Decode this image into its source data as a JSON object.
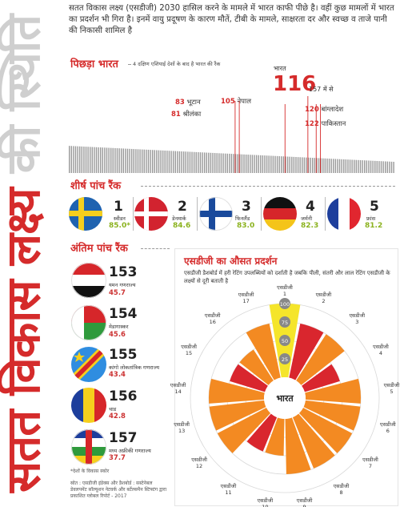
{
  "vertical_title": {
    "part_red": "सतत विकास लक्ष्य",
    "part_grey": "की स्थिति"
  },
  "intro": "सतत विकास लक्ष्य (एसडीजी) 2030 हासिल करने के मामले में भारत काफी पीछे है। वहीं कुछ मामलों में भारत का प्रदर्शन भी गिरा है। इनमें वायु प्रदूषण के कारण मौतें, टीबी के मामले, साक्षरता दर और स्वच्छ व ताजे पानी की निकासी शामिल है",
  "ranking": {
    "title": "पिछड़ा भारत",
    "note": "4 दक्षिण एशियाई देशों के बाद है भारत की रैंक",
    "india": {
      "label": "भारत",
      "rank": "116",
      "of": "157 में से"
    },
    "neighbours": [
      {
        "rank": "83",
        "name": "भूटान"
      },
      {
        "rank": "81",
        "name": "श्रीलंका"
      },
      {
        "rank": "105",
        "name": "नेपाल"
      },
      {
        "rank": "120",
        "name": "बांग्लादेश"
      },
      {
        "rank": "122",
        "name": "पाकिस्तान"
      }
    ],
    "bar_count": 157
  },
  "top_five": {
    "title": "शीर्ष पांच रैंक",
    "items": [
      {
        "rank": "1",
        "name": "स्वीडन",
        "score": "85.0*"
      },
      {
        "rank": "2",
        "name": "डेनमार्क",
        "score": "84.6"
      },
      {
        "rank": "3",
        "name": "फिनलैंड",
        "score": "83.0"
      },
      {
        "rank": "4",
        "name": "जर्मनी",
        "score": "82.3"
      },
      {
        "rank": "5",
        "name": "फ्रांस",
        "score": "81.2"
      }
    ]
  },
  "bottom_five": {
    "title": "अंतिम पांच रैंक",
    "items": [
      {
        "rank": "153",
        "name": "यमन गणराज्य",
        "score": "45.7"
      },
      {
        "rank": "154",
        "name": "मेडागास्कर",
        "score": "45.6"
      },
      {
        "rank": "155",
        "name": "कांगो लोकतांत्रिक गणराज्य",
        "score": "43.4"
      },
      {
        "rank": "156",
        "name": "चाड",
        "score": "42.8"
      },
      {
        "rank": "157",
        "name": "मध्य अफ्रीकी गणराज्य",
        "score": "37.7"
      }
    ],
    "footnote": "*देशों के विकास स्कोर",
    "source": "स्रोत : एसडीजी इंडेक्स और डैशबोर्ड : सस्टेनेबल डेवलपमेंट सॉल्यूशन नेटवर्क और बर्टेल्समैन स्टिफ्टंग द्वारा प्रकाशित ग्लोबल रिपोर्ट - 2017"
  },
  "average": {
    "title": "एसडीजी का औसत प्रदर्शन",
    "description": "एसडीजी डैशबोर्ड में हरी रेटिंग उपलब्धियों को दर्शाती है जबकि पीली, संतरी और लाल रेटिंग एसडीजी के लक्ष्यों से दूरी बताती है",
    "center_label": "भारत",
    "sdg_prefix": "एसडीजी",
    "scale": [
      "100",
      "75",
      "50",
      "25"
    ],
    "colors": {
      "yellow": "#f5e52a",
      "orange": "#f38a22",
      "red": "#d9262e"
    }
  },
  "chart_data": {
    "type": "polar-bar",
    "title": "एसडीजी का औसत प्रदर्शन",
    "center": "भारत",
    "rlim": [
      0,
      100
    ],
    "ticks": [
      25,
      50,
      75,
      100
    ],
    "categories": [
      "1",
      "2",
      "3",
      "4",
      "5",
      "6",
      "7",
      "8",
      "9",
      "10",
      "11",
      "12",
      "13",
      "14",
      "15",
      "16",
      "17"
    ],
    "values": [
      100,
      75,
      75,
      50,
      75,
      75,
      75,
      75,
      75,
      50,
      50,
      75,
      75,
      75,
      50,
      50,
      75
    ],
    "ratings": [
      "yellow",
      "red",
      "orange",
      "red",
      "orange",
      "orange",
      "orange",
      "orange",
      "orange",
      "orange",
      "red",
      "orange",
      "orange",
      "orange",
      "red",
      "orange",
      "orange"
    ]
  },
  "flag_colors": {
    "sweden": [
      "#1f63b0",
      "#f6cf1d"
    ],
    "denmark": [
      "#d2232f",
      "#ffffff"
    ],
    "finland": [
      "#ffffff",
      "#1a4a9c"
    ],
    "germany": [
      "#111111",
      "#d6262a",
      "#f4c41a"
    ],
    "france": [
      "#1d3e9c",
      "#ffffff",
      "#e1262f"
    ]
  }
}
